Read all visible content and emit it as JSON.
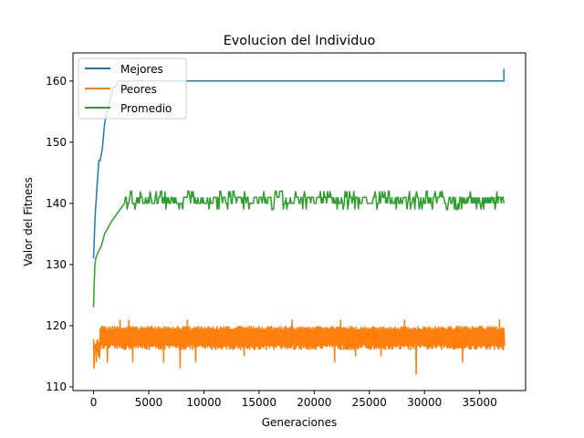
{
  "chart_data": {
    "type": "line",
    "title": "Evolucion del Individuo",
    "xlabel": "Generaciones",
    "ylabel": "Valor del Fitness",
    "xlim": [
      -1865,
      39165
    ],
    "ylim": [
      109.4,
      164.6
    ],
    "xticks": [
      0,
      5000,
      10000,
      15000,
      20000,
      25000,
      30000,
      35000
    ],
    "yticks": [
      110,
      120,
      130,
      140,
      150,
      160
    ],
    "legend_position": "top-left",
    "grid": false,
    "x_max": 37200,
    "series": [
      {
        "name": "Mejores",
        "color": "#1f77b4",
        "points": [
          [
            0,
            131
          ],
          [
            60,
            134
          ],
          [
            120,
            137
          ],
          [
            180,
            139
          ],
          [
            250,
            141
          ],
          [
            320,
            143
          ],
          [
            400,
            145
          ],
          [
            480,
            147
          ],
          [
            600,
            147
          ],
          [
            700,
            148
          ],
          [
            800,
            149
          ],
          [
            900,
            151
          ],
          [
            1000,
            153
          ],
          [
            1100,
            154
          ],
          [
            1200,
            155
          ],
          [
            1350,
            156
          ],
          [
            1500,
            157
          ],
          [
            1650,
            158
          ],
          [
            1800,
            159
          ],
          [
            2000,
            159
          ],
          [
            2200,
            160
          ],
          [
            37200,
            160
          ],
          [
            37200,
            162
          ]
        ]
      },
      {
        "name": "Peores",
        "color": "#ff7f0e",
        "range": [
          116,
          120
        ],
        "dips": [
          [
            0,
            113
          ],
          [
            380,
            115
          ],
          [
            1200,
            114
          ],
          [
            3500,
            114
          ],
          [
            6300,
            114
          ],
          [
            7800,
            113
          ],
          [
            9200,
            114
          ],
          [
            13600,
            115
          ],
          [
            21800,
            114
          ],
          [
            23700,
            115
          ],
          [
            26000,
            115
          ],
          [
            29200,
            112
          ],
          [
            33400,
            114
          ]
        ],
        "peaks": [
          [
            2400,
            121
          ],
          [
            3200,
            121
          ],
          [
            8500,
            121
          ],
          [
            18000,
            121
          ],
          [
            22400,
            121
          ],
          [
            28200,
            121
          ],
          [
            36800,
            121
          ]
        ]
      },
      {
        "name": "Promedio",
        "color": "#2ca02c",
        "points": [
          [
            0,
            123
          ],
          [
            60,
            127
          ],
          [
            120,
            130
          ],
          [
            200,
            131
          ],
          [
            400,
            132
          ],
          [
            700,
            133
          ],
          [
            1000,
            135
          ],
          [
            1300,
            136
          ],
          [
            1600,
            137
          ],
          [
            2000,
            138
          ],
          [
            2400,
            139
          ],
          [
            2800,
            140
          ]
        ],
        "range": [
          139,
          142
        ]
      }
    ]
  }
}
